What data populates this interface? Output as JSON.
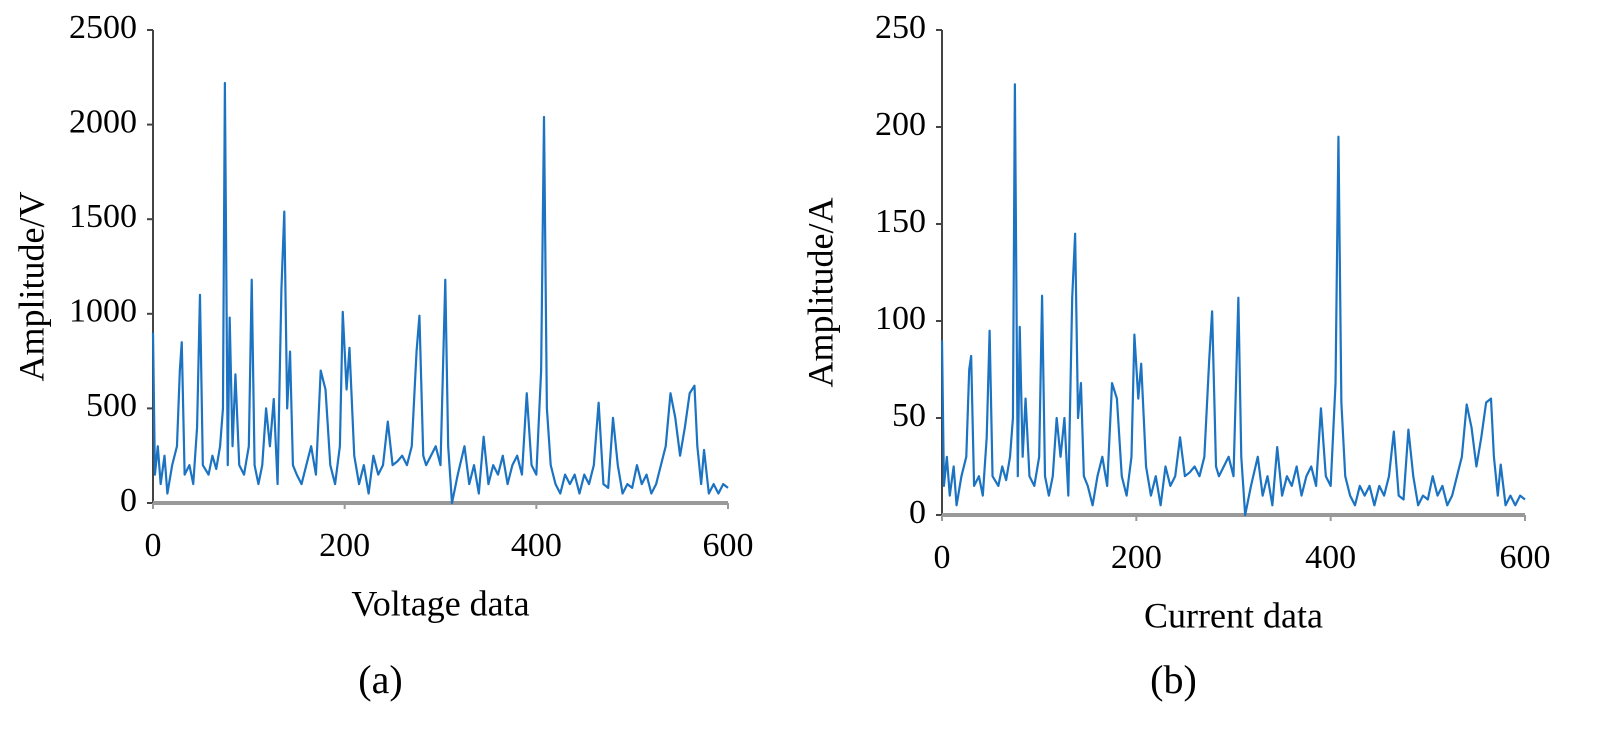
{
  "chart_data": [
    {
      "type": "line",
      "xlabel": "Voltage data",
      "ylabel": "Amplitude/V",
      "caption": "(a)",
      "color": "#1b73c2",
      "xlim": [
        0,
        600
      ],
      "xticks": [
        0,
        200,
        400,
        600
      ],
      "ylim": [
        0,
        2500
      ],
      "yticks": [
        0,
        500,
        1000,
        1500,
        2000,
        2500
      ],
      "x": [
        0,
        2,
        5,
        8,
        12,
        15,
        20,
        25,
        28,
        30,
        33,
        38,
        42,
        46,
        49,
        52,
        58,
        62,
        66,
        70,
        73,
        75,
        78,
        80,
        83,
        86,
        90,
        95,
        100,
        103,
        106,
        110,
        114,
        118,
        122,
        126,
        130,
        134,
        137,
        140,
        143,
        146,
        150,
        155,
        160,
        165,
        170,
        175,
        180,
        185,
        190,
        195,
        198,
        202,
        205,
        210,
        215,
        220,
        225,
        230,
        235,
        240,
        245,
        250,
        255,
        260,
        265,
        270,
        275,
        278,
        282,
        285,
        290,
        295,
        300,
        305,
        308,
        312,
        318,
        325,
        330,
        335,
        340,
        345,
        350,
        355,
        360,
        365,
        370,
        375,
        380,
        385,
        390,
        395,
        400,
        405,
        408,
        411,
        415,
        420,
        425,
        430,
        435,
        440,
        445,
        450,
        455,
        460,
        465,
        470,
        475,
        480,
        485,
        490,
        495,
        500,
        505,
        510,
        515,
        520,
        525,
        530,
        535,
        540,
        545,
        550,
        555,
        560,
        565,
        568,
        572,
        575,
        580,
        585,
        590,
        595,
        600
      ],
      "values": [
        900,
        150,
        300,
        100,
        250,
        50,
        200,
        300,
        700,
        850,
        150,
        200,
        100,
        400,
        1100,
        200,
        150,
        250,
        180,
        300,
        500,
        2220,
        200,
        980,
        300,
        680,
        200,
        150,
        300,
        1180,
        200,
        100,
        200,
        500,
        300,
        550,
        100,
        1130,
        1540,
        500,
        800,
        200,
        150,
        100,
        200,
        300,
        150,
        700,
        600,
        200,
        100,
        300,
        1010,
        600,
        820,
        250,
        100,
        200,
        50,
        250,
        150,
        200,
        430,
        200,
        220,
        250,
        200,
        300,
        800,
        990,
        250,
        200,
        250,
        300,
        200,
        1180,
        300,
        0,
        150,
        300,
        100,
        200,
        50,
        350,
        100,
        200,
        150,
        250,
        100,
        200,
        250,
        150,
        580,
        200,
        150,
        700,
        2040,
        500,
        200,
        100,
        50,
        150,
        100,
        150,
        50,
        150,
        100,
        200,
        530,
        100,
        80,
        450,
        200,
        50,
        100,
        80,
        200,
        100,
        150,
        50,
        100,
        200,
        300,
        580,
        450,
        250,
        400,
        580,
        620,
        300,
        100,
        280,
        50,
        100,
        50,
        100,
        80
      ]
    },
    {
      "type": "line",
      "xlabel": "Current data",
      "ylabel": "Amplitude/A",
      "caption": "(b)",
      "color": "#1b73c2",
      "xlim": [
        0,
        600
      ],
      "xticks": [
        0,
        200,
        400,
        600
      ],
      "ylim": [
        0,
        250
      ],
      "yticks": [
        0,
        50,
        100,
        150,
        200,
        250
      ],
      "x": [
        0,
        2,
        5,
        8,
        12,
        15,
        20,
        25,
        28,
        30,
        33,
        38,
        42,
        46,
        49,
        52,
        58,
        62,
        66,
        70,
        73,
        75,
        78,
        80,
        83,
        86,
        90,
        95,
        100,
        103,
        106,
        110,
        114,
        118,
        122,
        126,
        130,
        134,
        137,
        140,
        143,
        146,
        150,
        155,
        160,
        165,
        170,
        175,
        180,
        185,
        190,
        195,
        198,
        202,
        205,
        210,
        215,
        220,
        225,
        230,
        235,
        240,
        245,
        250,
        255,
        260,
        265,
        270,
        275,
        278,
        282,
        285,
        290,
        295,
        300,
        305,
        308,
        312,
        318,
        325,
        330,
        335,
        340,
        345,
        350,
        355,
        360,
        365,
        370,
        375,
        380,
        385,
        390,
        395,
        400,
        405,
        408,
        411,
        415,
        420,
        425,
        430,
        435,
        440,
        445,
        450,
        455,
        460,
        465,
        470,
        475,
        480,
        485,
        490,
        495,
        500,
        505,
        510,
        515,
        520,
        525,
        530,
        535,
        540,
        545,
        550,
        555,
        560,
        565,
        568,
        572,
        575,
        580,
        585,
        590,
        595,
        600
      ],
      "values": [
        90,
        15,
        30,
        10,
        25,
        5,
        20,
        30,
        75,
        82,
        15,
        20,
        10,
        40,
        95,
        20,
        15,
        25,
        18,
        30,
        50,
        222,
        20,
        97,
        30,
        60,
        20,
        15,
        30,
        113,
        20,
        10,
        20,
        50,
        30,
        50,
        10,
        112,
        145,
        50,
        68,
        20,
        15,
        5,
        20,
        30,
        15,
        68,
        60,
        20,
        10,
        30,
        93,
        60,
        78,
        25,
        10,
        20,
        5,
        25,
        15,
        20,
        40,
        20,
        22,
        25,
        20,
        30,
        80,
        105,
        25,
        20,
        25,
        30,
        20,
        112,
        30,
        0,
        15,
        30,
        10,
        20,
        5,
        35,
        10,
        20,
        15,
        25,
        10,
        20,
        25,
        15,
        55,
        20,
        15,
        68,
        195,
        58,
        20,
        10,
        5,
        15,
        10,
        15,
        5,
        15,
        10,
        20,
        43,
        10,
        8,
        44,
        20,
        5,
        10,
        8,
        20,
        10,
        15,
        5,
        10,
        20,
        30,
        57,
        45,
        25,
        40,
        58,
        60,
        30,
        10,
        26,
        5,
        10,
        5,
        10,
        8
      ]
    }
  ]
}
